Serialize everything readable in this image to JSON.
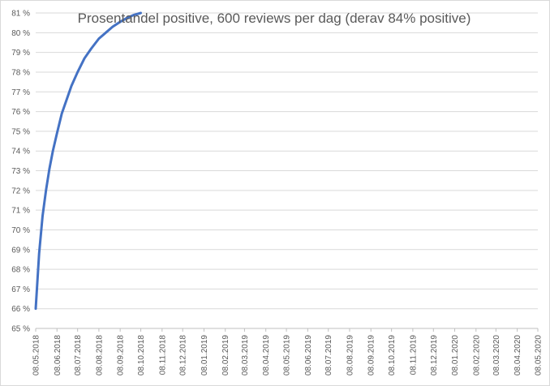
{
  "chart_data": {
    "type": "line",
    "title": "Prosentandel positive, 600 reviews per dag (derav 84% positive)",
    "xlabel": "",
    "ylabel": "",
    "ylim": [
      65,
      81
    ],
    "y_ticks": [
      "65 %",
      "66 %",
      "67 %",
      "68 %",
      "69 %",
      "70 %",
      "71 %",
      "72 %",
      "73 %",
      "74 %",
      "75 %",
      "76 %",
      "77 %",
      "78 %",
      "79 %",
      "80 %",
      "81 %"
    ],
    "x_ticks": [
      "08.05.2018",
      "08.06.2018",
      "08.07.2018",
      "08.08.2018",
      "08.09.2018",
      "08.10.2018",
      "08.11.2018",
      "08.12.2018",
      "08.01.2019",
      "08.02.2019",
      "08.03.2019",
      "08.04.2019",
      "08.05.2019",
      "08.06.2019",
      "08.07.2019",
      "08.08.2019",
      "08.09.2019",
      "08.10.2019",
      "08.11.2019",
      "08.12.2019",
      "08.01.2020",
      "08.02.2020",
      "08.03.2020",
      "08.04.2020",
      "08.05.2020"
    ],
    "grid": true,
    "legend": "none",
    "series": [
      {
        "color": "#4472c4",
        "x": [
          "08.05.2018",
          "13.05.2018",
          "18.05.2018",
          "23.05.2018",
          "28.05.2018",
          "02.06.2018",
          "08.06.2018",
          "15.06.2018",
          "22.06.2018",
          "29.06.2018",
          "08.07.2018",
          "18.07.2018",
          "28.07.2018",
          "08.08.2018",
          "18.08.2018",
          "28.08.2018",
          "08.09.2018",
          "18.09.2018",
          "28.09.2018",
          "08.10.2018"
        ],
        "y": [
          66.0,
          68.8,
          70.7,
          72.0,
          73.1,
          74.0,
          74.9,
          75.9,
          76.6,
          77.3,
          78.0,
          78.7,
          79.2,
          79.7,
          80.0,
          80.3,
          80.55,
          80.75,
          80.9,
          81.0
        ]
      }
    ]
  }
}
